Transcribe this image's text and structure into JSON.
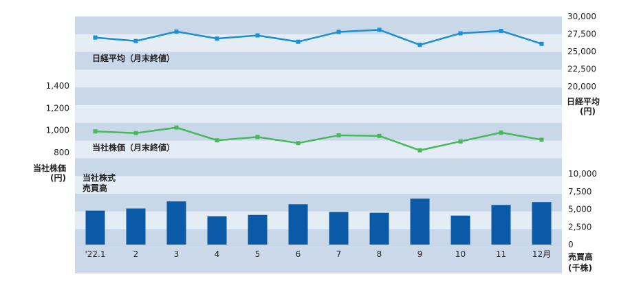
{
  "chart_data": {
    "type": "combo",
    "categories": [
      "'22.1",
      "2",
      "3",
      "4",
      "5",
      "6",
      "7",
      "8",
      "9",
      "10",
      "11",
      "12月"
    ],
    "series": [
      {
        "name": "日経平均（月末終値）",
        "type": "line",
        "axis": "日経平均(円)",
        "color": "#1a8fd1",
        "values": [
          27000,
          26500,
          27850,
          26850,
          27300,
          26400,
          27800,
          28100,
          25950,
          27600,
          27950,
          26100
        ]
      },
      {
        "name": "当社株価（月末終値）",
        "type": "line",
        "axis": "当社株価(円)",
        "color": "#48b85a",
        "values": [
          990,
          975,
          1025,
          910,
          940,
          885,
          955,
          950,
          820,
          900,
          980,
          915
        ]
      },
      {
        "name": "当社株式売買高",
        "type": "bar",
        "axis": "売買高(千株)",
        "color": "#0a5aa8",
        "values": [
          4800,
          5100,
          6100,
          4000,
          4200,
          5700,
          4600,
          4500,
          6500,
          4100,
          5600,
          6000
        ]
      }
    ],
    "axes": {
      "nikkei": {
        "ticks": [
          "30,000",
          "27,500",
          "25,000",
          "22,500",
          "20,000"
        ],
        "range": [
          20000,
          30000
        ],
        "label_line1": "日経平均",
        "label_line2": "(円)"
      },
      "stock": {
        "ticks": [
          "1,400",
          "1,200",
          "1,000",
          "800"
        ],
        "range": [
          800,
          1400
        ],
        "label_line1": "当社株価",
        "label_line2": "(円)"
      },
      "volume": {
        "ticks": [
          "10,000",
          "7,500",
          "5,000",
          "2,500",
          "0"
        ],
        "range": [
          0,
          10000
        ],
        "label_line1": "売買高",
        "label_line2": "(千株)",
        "inner_label_line1": "当社株式",
        "inner_label_line2": "売買高"
      }
    },
    "colors": {
      "band_dark": "#c9d8e9",
      "band_light": "#e4ecf5",
      "axis_band": "#cbd9ea"
    }
  }
}
